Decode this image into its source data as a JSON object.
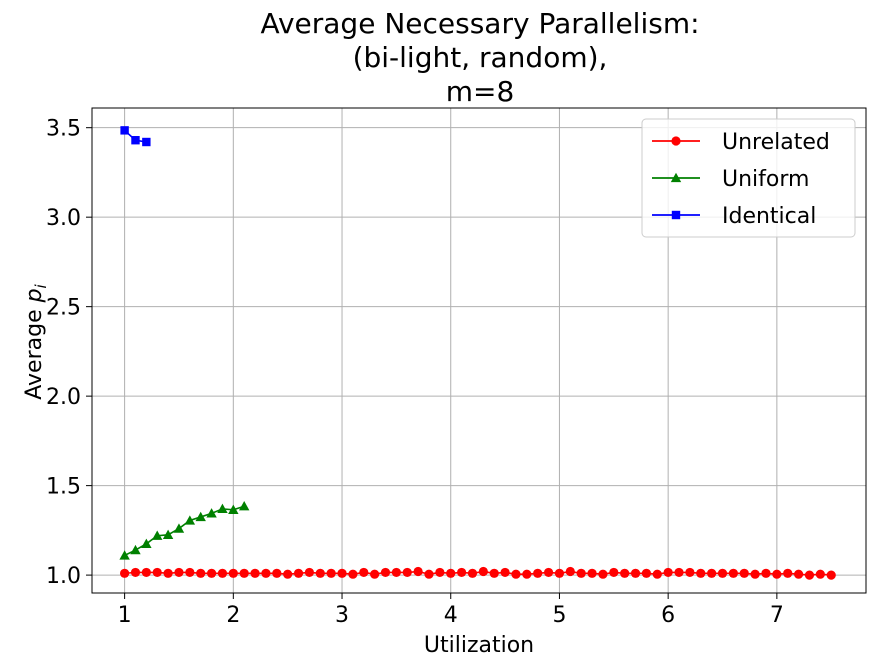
{
  "chart_data": {
    "type": "line",
    "title_lines": [
      "Average Necessary Parallelism:",
      "(bi-light, random),",
      "m=8"
    ],
    "xlabel": "Utilization",
    "ylabel_prefix": "Average ",
    "ylabel_var": "p",
    "ylabel_sub": "i",
    "xlim": [
      0.7,
      7.82
    ],
    "ylim": [
      0.9,
      3.61
    ],
    "xticks": [
      1,
      2,
      3,
      4,
      5,
      6,
      7
    ],
    "xtick_labels": [
      "1",
      "2",
      "3",
      "4",
      "5",
      "6",
      "7"
    ],
    "yticks": [
      1.0,
      1.5,
      2.0,
      2.5,
      3.0,
      3.5
    ],
    "ytick_labels": [
      "1.0",
      "1.5",
      "2.0",
      "2.5",
      "3.0",
      "3.5"
    ],
    "grid": true,
    "legend_position": "top-right",
    "series": [
      {
        "name": "Unrelated",
        "color": "#ff0000",
        "marker": "circle",
        "x": [
          1.0,
          1.1,
          1.2,
          1.3,
          1.4,
          1.5,
          1.6,
          1.7,
          1.8,
          1.9,
          2.0,
          2.1,
          2.2,
          2.3,
          2.4,
          2.5,
          2.6,
          2.7,
          2.8,
          2.9,
          3.0,
          3.1,
          3.2,
          3.3,
          3.4,
          3.5,
          3.6,
          3.7,
          3.8,
          3.9,
          4.0,
          4.1,
          4.2,
          4.3,
          4.4,
          4.5,
          4.6,
          4.7,
          4.8,
          4.9,
          5.0,
          5.1,
          5.2,
          5.3,
          5.4,
          5.5,
          5.6,
          5.7,
          5.8,
          5.9,
          6.0,
          6.1,
          6.2,
          6.3,
          6.4,
          6.5,
          6.6,
          6.7,
          6.8,
          6.9,
          7.0,
          7.1,
          7.2,
          7.3,
          7.4,
          7.5
        ],
        "y": [
          1.01,
          1.015,
          1.015,
          1.015,
          1.01,
          1.015,
          1.015,
          1.01,
          1.01,
          1.01,
          1.01,
          1.01,
          1.01,
          1.01,
          1.01,
          1.005,
          1.01,
          1.015,
          1.01,
          1.01,
          1.01,
          1.005,
          1.015,
          1.005,
          1.015,
          1.015,
          1.015,
          1.02,
          1.005,
          1.015,
          1.01,
          1.015,
          1.01,
          1.02,
          1.01,
          1.015,
          1.005,
          1.005,
          1.01,
          1.015,
          1.01,
          1.02,
          1.01,
          1.01,
          1.005,
          1.015,
          1.01,
          1.01,
          1.01,
          1.005,
          1.015,
          1.015,
          1.015,
          1.01,
          1.01,
          1.01,
          1.01,
          1.01,
          1.005,
          1.01,
          1.005,
          1.01,
          1.005,
          1.0,
          1.005,
          1.0
        ]
      },
      {
        "name": "Uniform",
        "color": "#008000",
        "marker": "triangle",
        "x": [
          1.0,
          1.1,
          1.2,
          1.3,
          1.4,
          1.5,
          1.6,
          1.7,
          1.8,
          1.9,
          2.0,
          2.1
        ],
        "y": [
          1.11,
          1.14,
          1.175,
          1.22,
          1.225,
          1.26,
          1.305,
          1.325,
          1.345,
          1.37,
          1.365,
          1.385
        ]
      },
      {
        "name": "Identical",
        "color": "#0000ff",
        "marker": "square",
        "x": [
          1.0,
          1.1,
          1.2
        ],
        "y": [
          3.485,
          3.43,
          3.42
        ]
      }
    ]
  }
}
